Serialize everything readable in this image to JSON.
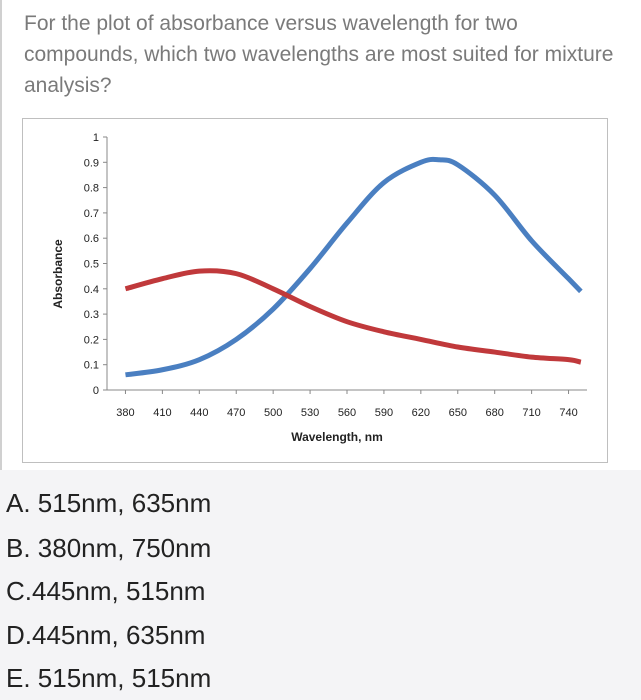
{
  "question": "For the plot of absorbance versus wavelength for two compounds, which two wavelengths are most suited for mixture analysis?",
  "chart_data": {
    "type": "line",
    "xlabel": "Wavelength, nm",
    "ylabel": "Absorbance",
    "x_ticks": [
      380,
      410,
      440,
      470,
      500,
      530,
      560,
      590,
      620,
      650,
      680,
      710,
      740
    ],
    "y_ticks": [
      "0",
      "0.1",
      "0.2",
      "0.3",
      "0.4",
      "0.5",
      "0.6",
      "0.7",
      "0.8",
      "0.9",
      "1"
    ],
    "xlim": [
      365,
      755
    ],
    "ylim": [
      0,
      1
    ],
    "grid": false,
    "series": [
      {
        "color": "#4a7fc1",
        "x": [
          380,
          410,
          440,
          470,
          500,
          530,
          560,
          590,
          620,
          635,
          650,
          680,
          710,
          740,
          750
        ],
        "y": [
          0.06,
          0.08,
          0.12,
          0.2,
          0.32,
          0.48,
          0.66,
          0.82,
          0.9,
          0.91,
          0.89,
          0.77,
          0.59,
          0.44,
          0.39
        ]
      },
      {
        "color": "#c0393b",
        "x": [
          380,
          410,
          440,
          470,
          500,
          530,
          560,
          590,
          620,
          650,
          680,
          710,
          740,
          750
        ],
        "y": [
          0.4,
          0.44,
          0.47,
          0.46,
          0.4,
          0.33,
          0.27,
          0.23,
          0.2,
          0.17,
          0.15,
          0.13,
          0.12,
          0.11
        ]
      }
    ]
  },
  "answers": [
    "A. 515nm, 635nm",
    "B. 380nm, 750nm",
    "C.445nm, 515nm",
    "D.445nm, 635nm",
    "E. 515nm, 515nm"
  ]
}
